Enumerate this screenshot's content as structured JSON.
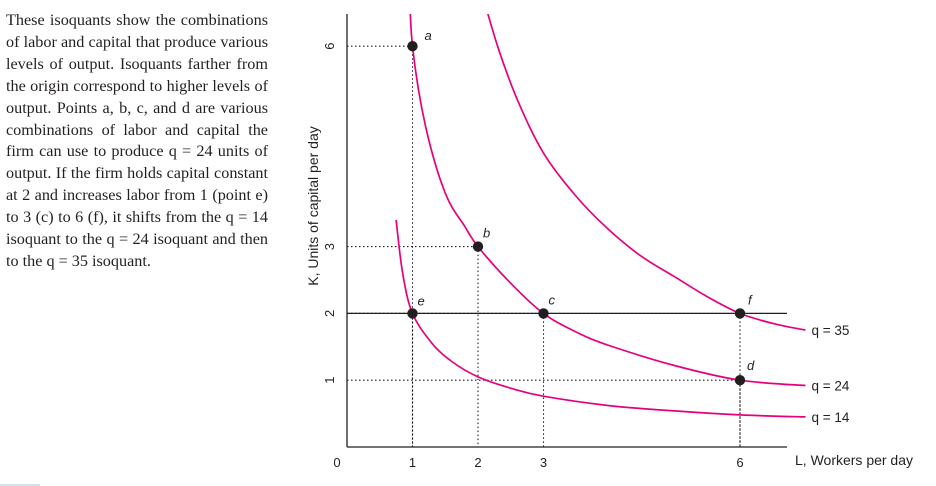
{
  "caption": "These isoquants show the combinations of labor and capital that produce various levels of output. Isoquants farther from the origin correspond to higher levels of output. Points a, b, c, and d are various combinations of labor and capital the firm can use to produce q = 24 units of output. If the firm holds capital constant at 2 and increases labor from 1 (point e) to 3 (c) to 6 (f), it shifts from the q = 14 isoquant to the q = 24 isoquant and then to the q = 35 isoquant.",
  "chart_data": {
    "type": "line",
    "xlabel": "L, Workers per day",
    "ylabel": "K, Units of capital per day",
    "xlim": [
      0,
      7
    ],
    "ylim": [
      0,
      7
    ],
    "x_ticks": [
      {
        "value": 1,
        "label": "1"
      },
      {
        "value": 2,
        "label": "2"
      },
      {
        "value": 3,
        "label": "3"
      },
      {
        "value": 6,
        "label": "6"
      }
    ],
    "y_ticks": [
      {
        "value": 1,
        "label": "1"
      },
      {
        "value": 2,
        "label": "2"
      },
      {
        "value": 3,
        "label": "3"
      },
      {
        "value": 6,
        "label": "6"
      }
    ],
    "origin_label": "0",
    "series": [
      {
        "name": "q = 14",
        "x": [
          0.75,
          0.85,
          1,
          1.3,
          1.6,
          2,
          2.5,
          3,
          4,
          5,
          6,
          7
        ],
        "y": [
          3.4,
          2.6,
          2,
          1.55,
          1.28,
          1.05,
          0.88,
          0.76,
          0.62,
          0.54,
          0.48,
          0.45
        ]
      },
      {
        "name": "q = 24",
        "x": [
          0.95,
          1,
          1.2,
          1.5,
          1.8,
          2,
          2.5,
          3,
          3.5,
          4,
          5,
          6,
          7
        ],
        "y": [
          7,
          6,
          4.8,
          3.8,
          3.3,
          3,
          2.45,
          2,
          1.72,
          1.52,
          1.22,
          1,
          0.92
        ]
      },
      {
        "name": "q = 35",
        "x": [
          2,
          2.3,
          2.6,
          3,
          3.5,
          4,
          4.5,
          5,
          5.5,
          6,
          6.5,
          7
        ],
        "y": [
          7,
          6,
          5.2,
          4.4,
          3.75,
          3.25,
          2.85,
          2.55,
          2.25,
          2,
          1.85,
          1.75
        ]
      }
    ],
    "points": [
      {
        "label": "a",
        "x": 1,
        "y": 6
      },
      {
        "label": "b",
        "x": 2,
        "y": 3
      },
      {
        "label": "c",
        "x": 3,
        "y": 2
      },
      {
        "label": "d",
        "x": 6,
        "y": 1
      },
      {
        "label": "e",
        "x": 1,
        "y": 2
      },
      {
        "label": "f",
        "x": 6,
        "y": 2
      }
    ],
    "reference_line_k": 2,
    "colors": {
      "curve": "#e6007e",
      "axis": "#231f20"
    }
  }
}
